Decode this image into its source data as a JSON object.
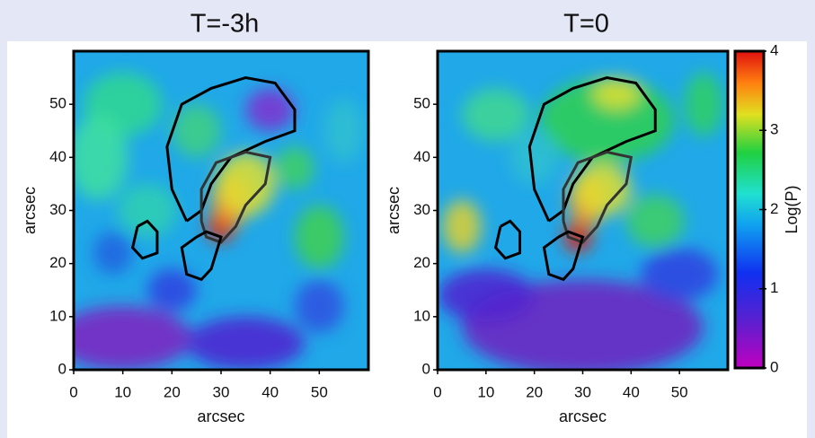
{
  "chart_data": [
    {
      "type": "heatmap",
      "title": "T=-3h",
      "xlabel": "arcsec",
      "ylabel": "arcsec",
      "xlim": [
        0,
        60
      ],
      "ylim": [
        0,
        60
      ],
      "xticks": [
        0,
        10,
        20,
        30,
        40,
        50
      ],
      "yticks": [
        0,
        10,
        20,
        30,
        40,
        50
      ]
    },
    {
      "type": "heatmap",
      "title": "T=0",
      "xlabel": "arcsec",
      "ylabel": "arcsec",
      "xlim": [
        0,
        60
      ],
      "ylim": [
        0,
        60
      ],
      "xticks": [
        0,
        10,
        20,
        30,
        40,
        50
      ],
      "yticks": [
        0,
        10,
        20,
        30,
        40,
        50
      ],
      "colorbar": {
        "label": "Log(P)",
        "lim": [
          0,
          4
        ],
        "ticks": [
          0,
          1,
          2,
          3,
          4
        ]
      }
    }
  ]
}
